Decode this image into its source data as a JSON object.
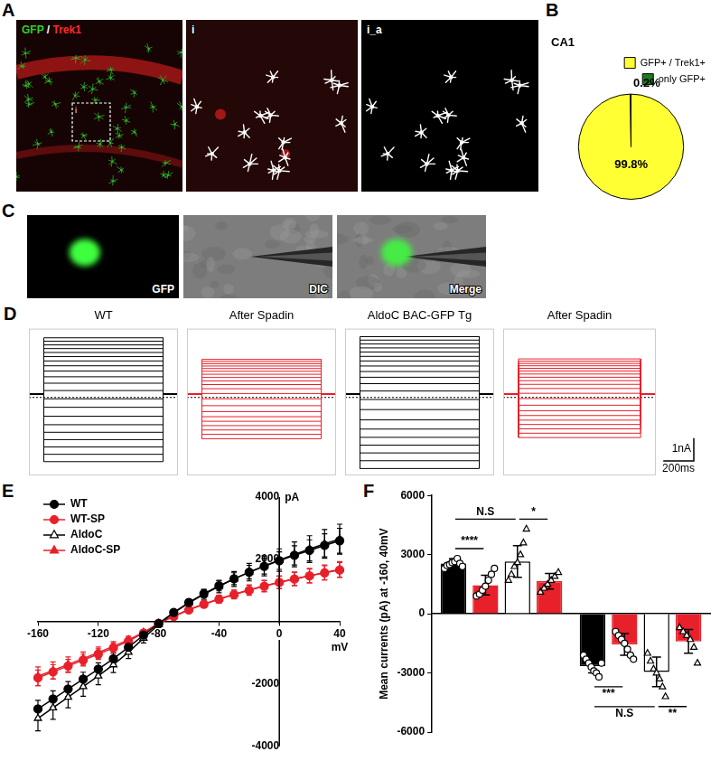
{
  "images": [
    {
      "panel": "A",
      "items": [
        {
          "label_parts": [
            {
              "text": "GFP",
              "color": "#2bd12b"
            },
            {
              "text": " / ",
              "color": "#ffffff"
            },
            {
              "text": "Trek1",
              "color": "#ff2a2a"
            }
          ],
          "inset_label": "i"
        },
        {
          "label": "i"
        },
        {
          "label": "i_a"
        }
      ]
    },
    {
      "panel": "C",
      "items": [
        {
          "label": "GFP"
        },
        {
          "label": "DIC"
        },
        {
          "label": "Merge"
        }
      ]
    }
  ],
  "chart_data": [
    {
      "panel": "B",
      "type": "pie",
      "title": "CA1",
      "categories": [
        "GFP+ / Trek1+",
        "only GFP+"
      ],
      "values": [
        99.8,
        0.2
      ],
      "value_labels": [
        "99.8%",
        "0.2%"
      ],
      "colors": [
        "#ffff33",
        "#1e7b1e"
      ],
      "legend": "top",
      "data_labels": true
    },
    {
      "panel": "D",
      "type": "traces",
      "title": "WT",
      "color": "#000000",
      "tick_labels": false,
      "xlim": [
        -100,
        900
      ],
      "ylim": [
        -3400,
        3000
      ],
      "step": [
        0,
        800
      ],
      "holding": 150,
      "reference": 0,
      "sweeps": [
        -2800,
        -2480,
        -2160,
        -1840,
        -1520,
        -1190,
        -820,
        -430,
        -60,
        300,
        620,
        900,
        1150,
        1380,
        1590,
        1780,
        1960,
        2130,
        2290,
        2450,
        2600
      ]
    },
    {
      "type": "traces",
      "title": "After Spadin",
      "color": "#e8202a",
      "tick_labels": false,
      "xlim": [
        -100,
        900
      ],
      "ylim": [
        -3400,
        3000
      ],
      "step": [
        0,
        800
      ],
      "holding": 150,
      "reference": 0,
      "sweeps": [
        -1800,
        -1610,
        -1420,
        -1230,
        -1040,
        -840,
        -620,
        -360,
        -60,
        170,
        380,
        560,
        720,
        870,
        1010,
        1140,
        1260,
        1370,
        1470,
        1570,
        1660
      ]
    },
    {
      "type": "traces",
      "title": "AldoC BAC-GFP Tg",
      "color": "#000000",
      "tick_labels": false,
      "xlim": [
        -100,
        900
      ],
      "ylim": [
        -3400,
        3000
      ],
      "step": [
        0,
        800
      ],
      "holding": 150,
      "reference": 0,
      "sweeps": [
        -3100,
        -2760,
        -2420,
        -2080,
        -1740,
        -1380,
        -980,
        -530,
        -90,
        280,
        600,
        880,
        1130,
        1370,
        1590,
        1790,
        1980,
        2160,
        2330,
        2500,
        2650
      ]
    },
    {
      "type": "traces",
      "title": "After Spadin",
      "color": "#e8202a",
      "tick_labels": false,
      "xlim": [
        -100,
        900
      ],
      "ylim": [
        -3400,
        3000
      ],
      "step": [
        0,
        800
      ],
      "holding": 150,
      "reference": 0,
      "sweeps": [
        -1750,
        -1560,
        -1370,
        -1180,
        -990,
        -790,
        -580,
        -340,
        -50,
        180,
        390,
        570,
        730,
        880,
        1020,
        1150,
        1270,
        1380,
        1480,
        1580,
        1680
      ],
      "scale_bar": {
        "x": 200,
        "y": 1000,
        "x_label": "200ms",
        "y_label": "1nA"
      }
    },
    {
      "panel": "E",
      "type": "line",
      "x_label": "mV",
      "y_label": "pA",
      "legend": "top-left",
      "x": [
        -160,
        -150,
        -140,
        -130,
        -120,
        -110,
        -100,
        -90,
        -80,
        -70,
        -60,
        -50,
        -40,
        -30,
        -20,
        -10,
        0,
        10,
        20,
        30,
        40
      ],
      "xlim": [
        -160,
        40
      ],
      "xticks": [
        -160,
        -120,
        -80,
        -40,
        0,
        40
      ],
      "ylim": [
        -4000,
        4000
      ],
      "yticks": [
        -4000,
        -2000,
        2000,
        4000
      ],
      "series": [
        {
          "name": "WT",
          "color": "#000000",
          "marker": "circle",
          "values": [
            -2800,
            -2480,
            -2160,
            -1840,
            -1520,
            -1190,
            -820,
            -430,
            -60,
            300,
            620,
            900,
            1150,
            1380,
            1590,
            1780,
            1960,
            2130,
            2290,
            2450,
            2600
          ],
          "errors": [
            280,
            260,
            240,
            220,
            200,
            180,
            150,
            120,
            80,
            80,
            100,
            130,
            160,
            190,
            220,
            250,
            280,
            310,
            340,
            370,
            400
          ]
        },
        {
          "name": "WT-SP",
          "color": "#e8202a",
          "marker": "circle",
          "values": [
            -1800,
            -1610,
            -1420,
            -1230,
            -1040,
            -840,
            -620,
            -360,
            -60,
            170,
            380,
            560,
            720,
            870,
            1010,
            1140,
            1260,
            1370,
            1470,
            1570,
            1660
          ],
          "errors": [
            250,
            230,
            210,
            190,
            170,
            150,
            120,
            90,
            60,
            60,
            80,
            100,
            120,
            140,
            160,
            180,
            200,
            210,
            220,
            230,
            240
          ]
        },
        {
          "name": "AldoC",
          "color": "#000000",
          "marker": "open_triangle",
          "values": [
            -3100,
            -2760,
            -2420,
            -2080,
            -1740,
            -1380,
            -980,
            -530,
            -90,
            280,
            600,
            880,
            1130,
            1370,
            1590,
            1790,
            1980,
            2160,
            2330,
            2500,
            2650
          ],
          "errors": [
            400,
            370,
            340,
            310,
            280,
            250,
            200,
            150,
            90,
            90,
            120,
            160,
            200,
            240,
            280,
            320,
            360,
            400,
            430,
            460,
            480
          ]
        },
        {
          "name": "AldoC-SP",
          "color": "#e8202a",
          "marker": "triangle",
          "values": [
            -1750,
            -1560,
            -1370,
            -1180,
            -990,
            -790,
            -580,
            -340,
            -50,
            180,
            390,
            570,
            730,
            880,
            1020,
            1150,
            1270,
            1380,
            1480,
            1580,
            1680
          ],
          "errors": [
            300,
            270,
            240,
            210,
            180,
            150,
            120,
            90,
            60,
            60,
            80,
            100,
            120,
            140,
            160,
            180,
            200,
            220,
            230,
            240,
            250
          ]
        }
      ]
    },
    {
      "panel": "F",
      "type": "bar",
      "categories": [
        null,
        null
      ],
      "tick_labels": "y",
      "y_label": "Mean currents (pA) at -160, 40mV",
      "ylim": [
        -6000,
        6000
      ],
      "yticks": [
        -6000,
        -3000,
        0,
        3000,
        6000
      ],
      "series": [
        {
          "color": "#000000",
          "marker": "open_circle",
          "values": [
            2550,
            -2650
          ],
          "errors": [
            250,
            350
          ],
          "points": [
            [
              2300,
              2450,
              2500,
              2600,
              2650,
              2800,
              2550,
              2400
            ],
            [
              -2100,
              -2300,
              -2500,
              -2700,
              -2900,
              -3000,
              -3200,
              -2500
            ]
          ]
        },
        {
          "color": "#e8202a",
          "marker": "open_circle",
          "values": [
            1450,
            -1550
          ],
          "errors": [
            500,
            550
          ],
          "points": [
            [
              900,
              1000,
              1200,
              1400,
              1700,
              2000,
              2300
            ],
            [
              -900,
              -1100,
              -1300,
              -1500,
              -1800,
              -2100,
              -2300
            ]
          ]
        },
        {
          "color": "#ffffff",
          "marker": "open_triangle",
          "values": [
            2650,
            -2950
          ],
          "errors": [
            800,
            750
          ],
          "points": [
            [
              1700,
              2000,
              2400,
              2600,
              3000,
              3600,
              4300
            ],
            [
              -2000,
              -2400,
              -2800,
              -3000,
              -3300,
              -3700,
              -4200
            ]
          ]
        },
        {
          "color": "#e8202a",
          "marker": "open_triangle",
          "values": [
            1650,
            -1400
          ],
          "errors": [
            400,
            600
          ],
          "points": [
            [
              1100,
              1300,
              1500,
              1700,
              1900,
              2100
            ],
            [
              -700,
              -900,
              -1100,
              -1300,
              -1700,
              -2500
            ]
          ]
        }
      ],
      "annotations": [
        {
          "text": "****",
          "from": [
            0,
            0
          ],
          "to": [
            0,
            1
          ]
        },
        {
          "text": "*",
          "from": [
            0,
            2
          ],
          "to": [
            0,
            3
          ]
        },
        {
          "text": "N.S",
          "from": [
            0,
            0
          ],
          "to": [
            0,
            2
          ]
        },
        {
          "text": "***",
          "from": [
            1,
            0
          ],
          "to": [
            1,
            1
          ]
        },
        {
          "text": "**",
          "from": [
            1,
            2
          ],
          "to": [
            1,
            3
          ]
        },
        {
          "text": "N.S",
          "from": [
            1,
            0
          ],
          "to": [
            1,
            2
          ]
        }
      ]
    }
  ]
}
